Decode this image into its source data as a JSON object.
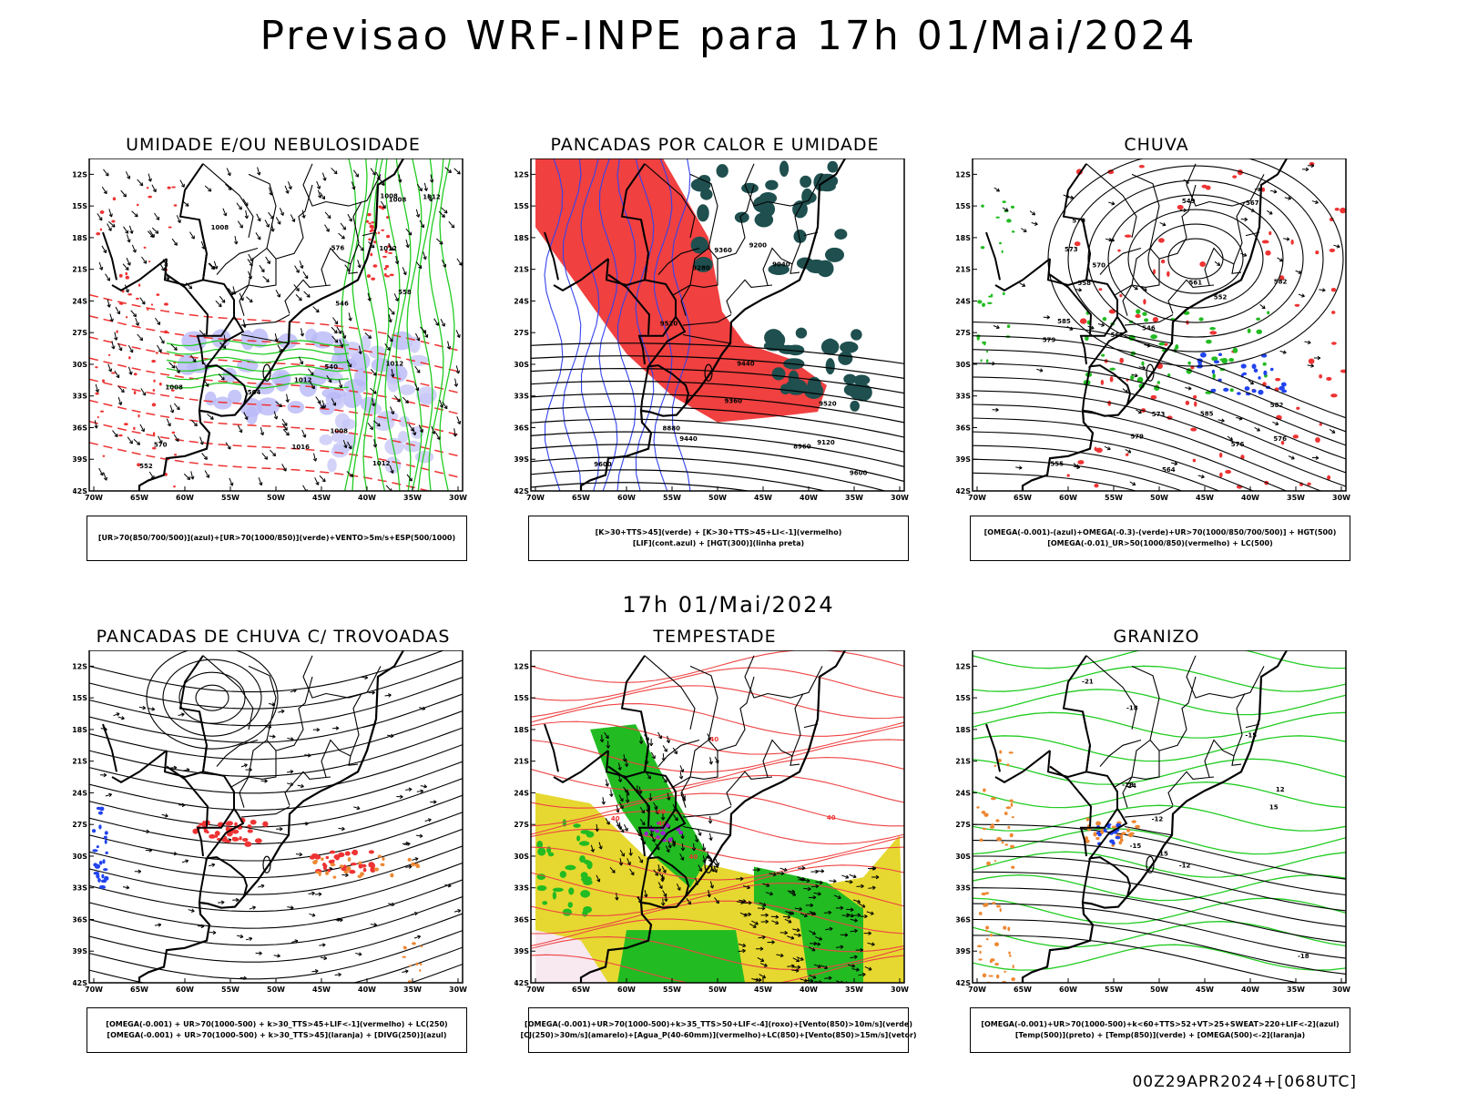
{
  "header": {
    "title": "Previsao WRF-INPE  para 17h 01/Mai/2024",
    "mid_time": "17h 01/Mai/2024",
    "footer": "00Z29APR2024+[068UTC]"
  },
  "axes": {
    "lat_labels": [
      "12S",
      "15S",
      "18S",
      "21S",
      "24S",
      "27S",
      "30S",
      "33S",
      "36S",
      "39S",
      "42S"
    ],
    "lon_labels": [
      "70W",
      "65W",
      "60W",
      "55W",
      "50W",
      "45W",
      "40W",
      "35W",
      "30W"
    ]
  },
  "panels": [
    {
      "id": "umidade",
      "title": "UMIDADE E/OU NEBULOSIDADE",
      "legend": [
        "[UR>70(850/700/500)](azul)+[UR>70(1000/850)](verde)+VENTO>5m/s+ESP(500/1000)"
      ],
      "contour_labels": [
        "1008",
        "1008",
        "1012",
        "1012",
        "1012",
        "1016",
        "1008",
        "1012",
        "1008",
        "1008",
        "1012",
        "576",
        "570",
        "564",
        "558",
        "552",
        "546",
        "540"
      ]
    },
    {
      "id": "pancadas-calor",
      "title": "PANCADAS POR CALOR E UMIDADE",
      "legend": [
        "[K>30+TTS>45](verde) + [K>30+TTS>45+LI<-1](vermelho)",
        "[LIF](cont.azul) + [HGT(300)](linha preta)"
      ],
      "contour_labels": [
        "9600",
        "9520",
        "9440",
        "9360",
        "9280",
        "9200",
        "9120",
        "9040",
        "8960",
        "8880",
        "9600",
        "9520",
        "9440",
        "9360"
      ]
    },
    {
      "id": "chuva",
      "title": "CHUVA",
      "legend": [
        "[OMEGA(-0.001)-(azul)+OMEGA(-0.3)-(verde)+UR>70(1000/850/700/500)] + HGT(500)",
        "[OMEGA(-0.01)_UR>50(1000/850)(vermelho) + LC(500)"
      ],
      "contour_labels": [
        "585",
        "585",
        "582",
        "579",
        "576",
        "573",
        "570",
        "567",
        "564",
        "561",
        "558",
        "555",
        "552",
        "549",
        "546",
        "582",
        "579",
        "576",
        "573",
        "570",
        "567"
      ]
    },
    {
      "id": "pancadas-trovoadas",
      "title": "PANCADAS DE CHUVA C/ TROVOADAS",
      "legend": [
        "[OMEGA(-0.001) + UR>70(1000-500) + k>30_TTS>45+LIF<-1](vermelho) + LC(250)",
        "[OMEGA(-0.001) + UR>70(1000-500) + k>30_TTS>45](laranja) + [DIVG(250)](azul)"
      ],
      "contour_labels": []
    },
    {
      "id": "tempestade",
      "title": "TEMPESTADE",
      "legend": [
        "[OMEGA(-0.001)+UR>70(1000-500)+k>35_TTS>50+LIF<-4](roxo)+[Vento(850)>10m/s](verde)",
        "[CJ(250)>30m/s](amarelo)+[Agua_P(40-60mm)](vermelho)+LC(850)+[Vento(850)>15m/s](vetor)"
      ],
      "contour_labels": [
        "40",
        "40",
        "40",
        "40",
        "40",
        "40"
      ]
    },
    {
      "id": "granizo",
      "title": "GRANIZO",
      "legend": [
        "[OMEGA(-0.001)+UR>70(1000-500)+k<60+TTS>52+VT>25+SWEAT>220+LIF<-2](azul)",
        "[Temp(500)](preto) + [Temp(850)](verde) + [OMEGA(500)<-2](laranja)"
      ],
      "contour_labels": [
        "-15",
        "-12",
        "-18",
        "-21",
        "-24",
        "-12",
        "-18",
        "-15",
        "-18",
        "15",
        "15",
        "12"
      ]
    }
  ]
}
